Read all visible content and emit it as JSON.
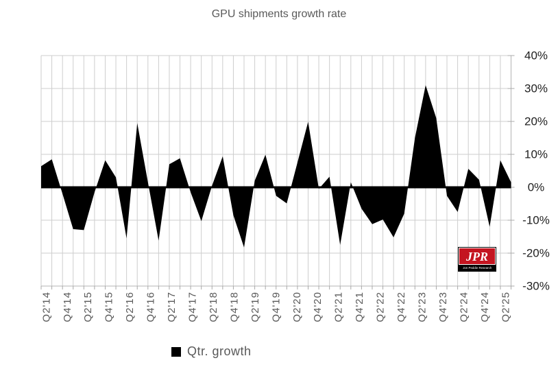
{
  "title": "GPU shipments growth rate",
  "legend": {
    "label": "Qtr. growth"
  },
  "logo": {
    "acronym": "JPR",
    "subtitle": "Jon Peddie Research",
    "red": "#c41520"
  },
  "colors": {
    "background": "#ffffff",
    "area_fill": "#000000",
    "zero_axis": "#000000",
    "grid": "#cdcdcd",
    "axis_line": "#b3b3b3",
    "tick": "#a8a8a8",
    "title_text": "#595959",
    "x_label_text": "#595959",
    "y_label_text": "#1f1f1f"
  },
  "chart_data": {
    "type": "area",
    "title": "GPU shipments growth rate",
    "series_name": "Qtr. growth",
    "categories": [
      "Q2'14",
      "Q3'14",
      "Q4'14",
      "Q1'15",
      "Q2'15",
      "Q3'15",
      "Q4'15",
      "Q1'16",
      "Q2'16",
      "Q3'16",
      "Q4'16",
      "Q1'17",
      "Q2'17",
      "Q3'17",
      "Q4'17",
      "Q1'18",
      "Q2'18",
      "Q3'18",
      "Q4'18",
      "Q1'19",
      "Q2'19",
      "Q3'19",
      "Q4'19",
      "Q1'20",
      "Q2'20",
      "Q3'20",
      "Q4'20",
      "Q1'21",
      "Q2'21",
      "Q3'21",
      "Q4'21",
      "Q1'22",
      "Q2'22",
      "Q3'22",
      "Q4'22",
      "Q1'23",
      "Q2'23",
      "Q3'23",
      "Q4'23",
      "Q1'24",
      "Q2'24",
      "Q3'24",
      "Q4'24",
      "Q1'25",
      "Q2'25"
    ],
    "values": [
      6.4,
      8.5,
      -2.0,
      -12.7,
      -13.0,
      -1.5,
      8.2,
      3.0,
      -15.5,
      19.5,
      1.5,
      -16.2,
      7.0,
      8.8,
      -1.5,
      -10.3,
      0.5,
      9.4,
      -8.5,
      -18.3,
      2.0,
      9.9,
      -2.6,
      -4.9,
      7.5,
      19.9,
      -0.5,
      3.2,
      -17.5,
      1.5,
      -6.5,
      -11.2,
      -9.8,
      -15.2,
      -8.0,
      15.0,
      31.0,
      21.0,
      -2.6,
      -7.5,
      5.6,
      2.3,
      -12.0,
      8.2,
      1.5
    ],
    "x_axis": {
      "shown_tick_labels": [
        "Q2'14",
        "Q4'14",
        "Q2'15",
        "Q4'15",
        "Q2'16",
        "Q4'16",
        "Q2'17",
        "Q4'17",
        "Q2'18",
        "Q4'18",
        "Q2'19",
        "Q4'19",
        "Q2'20",
        "Q4'20",
        "Q2'21",
        "Q4'21",
        "Q2'22",
        "Q4'22",
        "Q2'23",
        "Q4'23",
        "Q2'24",
        "Q4'24",
        "Q2'25"
      ],
      "label_every_n_categories": 2
    },
    "y_axis": {
      "min": -30,
      "max": 40,
      "tick_values": [
        40,
        30,
        20,
        10,
        0,
        -10,
        -20,
        -30
      ],
      "tick_labels": [
        "40%",
        "30%",
        "20%",
        "10%",
        "0%",
        "-10%",
        "-20%",
        "-30%"
      ],
      "side": "right"
    },
    "grid": true,
    "zero_baseline": true,
    "legend_position": "bottom",
    "fill_color": "#000000"
  }
}
